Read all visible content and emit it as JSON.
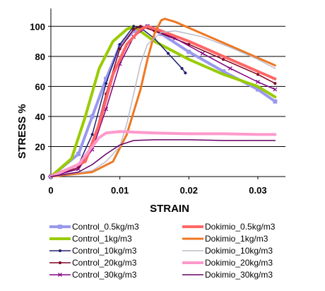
{
  "chart_data": {
    "type": "line",
    "title": "",
    "xlabel": "STRAIN",
    "ylabel": "STRESS %",
    "xlim": [
      0,
      0.034
    ],
    "ylim": [
      0,
      110
    ],
    "x_ticks": [
      0,
      0.01,
      0.02,
      0.03
    ],
    "x_tick_labels": [
      "0",
      "0.01",
      "0.02",
      "0.03"
    ],
    "y_ticks": [
      0,
      20,
      40,
      60,
      80,
      100
    ],
    "y_tick_labels": [
      "0",
      "20",
      "40",
      "60",
      "80",
      "100"
    ],
    "grid": "horizontal",
    "legend_position": "bottom",
    "series": [
      {
        "name": "Control_0.5kg/m3",
        "color": "#9999ee",
        "marker": "square",
        "width": 4,
        "x": [
          0,
          0.004,
          0.006,
          0.008,
          0.01,
          0.012,
          0.014,
          0.016,
          0.02,
          0.025,
          0.03,
          0.0325
        ],
        "y": [
          0,
          15,
          40,
          65,
          87,
          97,
          100,
          95,
          83,
          70,
          58,
          50
        ]
      },
      {
        "name": "Control_1kg/m3",
        "color": "#99cc00",
        "marker": "none",
        "width": 4,
        "x": [
          0,
          0.003,
          0.005,
          0.007,
          0.009,
          0.011,
          0.012,
          0.015,
          0.02,
          0.025,
          0.03,
          0.0325
        ],
        "y": [
          0,
          12,
          40,
          72,
          90,
          98,
          100,
          90,
          78,
          68,
          60,
          53
        ]
      },
      {
        "name": "Control_10kg/m3",
        "color": "#202070",
        "marker": "dot",
        "width": 1.5,
        "x": [
          0,
          0.004,
          0.006,
          0.008,
          0.01,
          0.012,
          0.013,
          0.015,
          0.017,
          0.019,
          0.0195
        ],
        "y": [
          0,
          8,
          28,
          62,
          88,
          100,
          99,
          92,
          82,
          72,
          69
        ]
      },
      {
        "name": "Control_20kg/m3",
        "color": "#800020",
        "marker": "dot",
        "width": 1.5,
        "x": [
          0,
          0.004,
          0.006,
          0.008,
          0.01,
          0.012,
          0.013,
          0.015,
          0.02,
          0.025,
          0.03,
          0.0325
        ],
        "y": [
          0,
          6,
          20,
          55,
          85,
          98,
          100,
          97,
          88,
          78,
          68,
          62
        ]
      },
      {
        "name": "Control_30kg/m3",
        "color": "#800080",
        "marker": "x",
        "width": 1.5,
        "x": [
          0,
          0.004,
          0.006,
          0.008,
          0.01,
          0.012,
          0.014,
          0.015,
          0.018,
          0.022,
          0.026,
          0.03,
          0.0325
        ],
        "y": [
          0,
          5,
          18,
          45,
          75,
          93,
          100,
          98,
          92,
          82,
          72,
          63,
          58
        ]
      },
      {
        "name": "Dokimio_0.5kg/m3",
        "color": "#ff6666",
        "marker": "none",
        "width": 4,
        "x": [
          0,
          0.005,
          0.007,
          0.009,
          0.011,
          0.013,
          0.014,
          0.016,
          0.02,
          0.025,
          0.03,
          0.0325
        ],
        "y": [
          0,
          10,
          35,
          68,
          88,
          98,
          100,
          97,
          90,
          80,
          70,
          65
        ]
      },
      {
        "name": "Dokimio_1kg/m3",
        "color": "#ee7722",
        "marker": "none",
        "width": 3,
        "x": [
          0,
          0.006,
          0.009,
          0.011,
          0.013,
          0.014,
          0.015,
          0.016,
          0.0165,
          0.018,
          0.022,
          0.026,
          0.03,
          0.0325
        ],
        "y": [
          0,
          3,
          10,
          28,
          58,
          78,
          95,
          104,
          105,
          103,
          95,
          87,
          79,
          74
        ]
      },
      {
        "name": "Dokimio_10kg/m3",
        "color": "#bbbbcc",
        "marker": "none",
        "width": 1.5,
        "x": [
          0,
          0.006,
          0.008,
          0.01,
          0.011,
          0.012,
          0.013,
          0.014,
          0.016,
          0.018,
          0.022,
          0.026,
          0.03,
          0.0325
        ],
        "y": [
          0,
          4,
          10,
          20,
          35,
          55,
          75,
          88,
          96,
          97,
          93,
          86,
          78,
          72
        ]
      },
      {
        "name": "Dokimio_20kg/m3",
        "color": "#ff99cc",
        "marker": "none",
        "width": 4,
        "x": [
          0,
          0.004,
          0.006,
          0.007,
          0.008,
          0.01,
          0.015,
          0.02,
          0.025,
          0.03,
          0.0325
        ],
        "y": [
          0,
          8,
          20,
          26,
          29,
          30,
          29,
          28.5,
          28.5,
          28,
          28
        ]
      },
      {
        "name": "Dokimio_30kg/m3",
        "color": "#660066",
        "marker": "none",
        "width": 1.5,
        "x": [
          0,
          0.004,
          0.006,
          0.008,
          0.01,
          0.012,
          0.015,
          0.02,
          0.025,
          0.03,
          0.0325
        ],
        "y": [
          0,
          3,
          8,
          15,
          21,
          24,
          24.5,
          24.5,
          24,
          24,
          24
        ]
      }
    ]
  }
}
